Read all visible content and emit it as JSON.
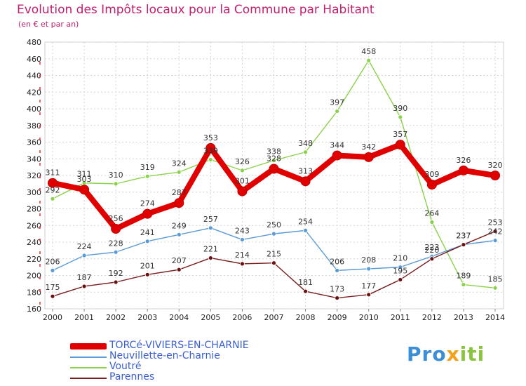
{
  "title": "Evolution des Impôts locaux pour la Commune par Habitant",
  "subtitle": "(en € et par an)",
  "logo": {
    "part1": "Pro",
    "part2": "x",
    "part3": "iti"
  },
  "chart_data": {
    "type": "line",
    "title": "Evolution des Impôts locaux pour la Commune par Habitant",
    "ylabel": "(en € et par an)",
    "xlabel": "",
    "ylim": [
      160,
      480
    ],
    "yticks": [
      160,
      180,
      200,
      220,
      240,
      260,
      280,
      300,
      320,
      340,
      360,
      380,
      400,
      420,
      440,
      460,
      480
    ],
    "x": [
      "2000",
      "2001",
      "2002",
      "2003",
      "2004",
      "2005",
      "2006",
      "2007",
      "2008",
      "2009",
      "2010",
      "2011",
      "2012",
      "2013",
      "2014"
    ],
    "grid": true,
    "legend_position": "bottom-left",
    "series": [
      {
        "name": "TORCé-VIVIERS-EN-CHARNIE",
        "color": "#e00000",
        "values": [
          311,
          303,
          256,
          274,
          287,
          353,
          301,
          328,
          313,
          344,
          342,
          357,
          309,
          326,
          320
        ]
      },
      {
        "name": "Neuvillette-en-Charnie",
        "color": "#5b9bd5",
        "values": [
          206,
          224,
          228,
          241,
          249,
          257,
          243,
          250,
          254,
          206,
          208,
          210,
          223,
          237,
          242
        ]
      },
      {
        "name": "Voutré",
        "color": "#8bd14a",
        "values": [
          292,
          311,
          310,
          319,
          324,
          339,
          326,
          338,
          348,
          397,
          458,
          390,
          264,
          189,
          185
        ]
      },
      {
        "name": "Parennes",
        "color": "#7a1f1f",
        "values": [
          175,
          187,
          192,
          201,
          207,
          221,
          214,
          215,
          181,
          173,
          177,
          195,
          220,
          237,
          253
        ]
      }
    ]
  }
}
